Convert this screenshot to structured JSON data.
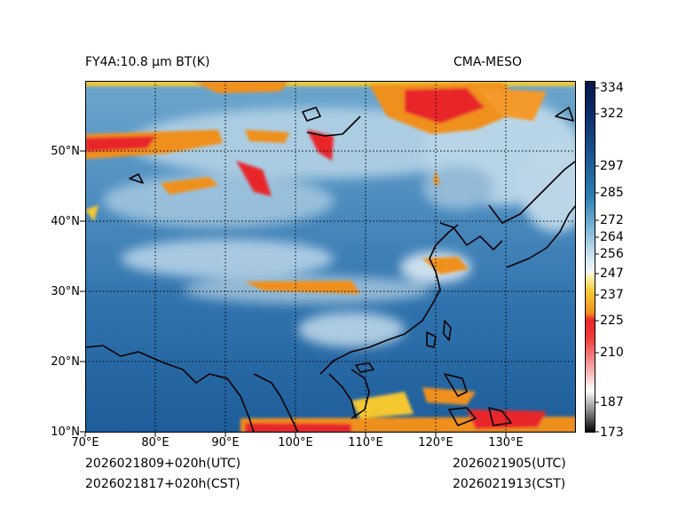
{
  "header": {
    "left_title": "FY4A:10.8 µm BT(K)",
    "right_title": "CMA-MESO"
  },
  "footer": {
    "left_utc": "2026021809+020h(UTC)",
    "left_cst": "2026021817+020h(CST)",
    "right_utc": "2026021905(UTC)",
    "right_cst": "2026021913(CST)"
  },
  "map": {
    "lon_labels": [
      "70°E",
      "80°E",
      "90°E",
      "100°E",
      "110°E",
      "120°E",
      "130°E"
    ],
    "lat_labels": [
      "10°N",
      "20°N",
      "30°N",
      "40°N",
      "50°N"
    ],
    "lon_range": [
      70,
      140
    ],
    "lat_range": [
      10,
      60
    ]
  },
  "colorbar": {
    "ticks": [
      "334",
      "322",
      "297",
      "285",
      "272",
      "264",
      "256",
      "247",
      "237",
      "225",
      "210",
      "187",
      "173"
    ],
    "colors": {
      "cold_cloud_red": "#e8272a",
      "orange": "#f0901e",
      "yellow": "#f5c832",
      "clear_blue": "#1e5e9c",
      "cloud_white": "#dce8f0",
      "navy": "#0a1e5a"
    }
  }
}
